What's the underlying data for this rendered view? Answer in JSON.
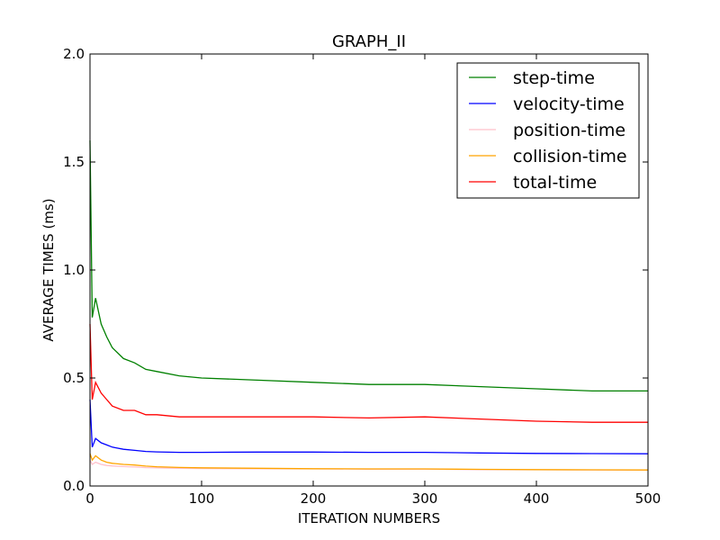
{
  "chart_data": {
    "type": "line",
    "title": "GRAPH_II",
    "xlabel": "ITERATION NUMBERS",
    "ylabel": "AVERAGE TIMES (ms)",
    "xlim": [
      0,
      500
    ],
    "ylim": [
      0.0,
      2.0
    ],
    "x_ticks": [
      "0",
      "100",
      "200",
      "300",
      "400",
      "500"
    ],
    "y_ticks": [
      "0.0",
      "0.5",
      "1.0",
      "1.5",
      "2.0"
    ],
    "grid": false,
    "legend_position": "top-right",
    "x": [
      0,
      2,
      5,
      10,
      15,
      20,
      30,
      40,
      50,
      60,
      80,
      100,
      150,
      200,
      250,
      300,
      350,
      400,
      450,
      500
    ],
    "series": [
      {
        "name": "step-time",
        "color": "#008000",
        "values": [
          1.6,
          0.78,
          0.87,
          0.75,
          0.69,
          0.64,
          0.59,
          0.57,
          0.54,
          0.53,
          0.51,
          0.5,
          0.49,
          0.48,
          0.47,
          0.47,
          0.46,
          0.45,
          0.44,
          0.44
        ]
      },
      {
        "name": "velocity-time",
        "color": "#0000ff",
        "values": [
          0.4,
          0.18,
          0.22,
          0.2,
          0.19,
          0.18,
          0.17,
          0.165,
          0.16,
          0.158,
          0.156,
          0.156,
          0.157,
          0.157,
          0.156,
          0.156,
          0.153,
          0.151,
          0.15,
          0.149
        ]
      },
      {
        "name": "position-time",
        "color": "#ffc0cb",
        "values": [
          0.12,
          0.1,
          0.11,
          0.1,
          0.095,
          0.093,
          0.09,
          0.088,
          0.085,
          0.084,
          0.082,
          0.081,
          0.08,
          0.079,
          0.078,
          0.078,
          0.076,
          0.075,
          0.074,
          0.073
        ]
      },
      {
        "name": "collision-time",
        "color": "#ffa500",
        "values": [
          0.15,
          0.12,
          0.14,
          0.12,
          0.11,
          0.105,
          0.1,
          0.097,
          0.092,
          0.089,
          0.086,
          0.084,
          0.082,
          0.08,
          0.079,
          0.079,
          0.077,
          0.076,
          0.075,
          0.074
        ]
      },
      {
        "name": "total-time",
        "color": "#ff0000",
        "values": [
          0.75,
          0.4,
          0.48,
          0.43,
          0.4,
          0.37,
          0.35,
          0.35,
          0.33,
          0.33,
          0.32,
          0.32,
          0.32,
          0.32,
          0.315,
          0.32,
          0.31,
          0.3,
          0.295,
          0.295
        ]
      }
    ]
  }
}
